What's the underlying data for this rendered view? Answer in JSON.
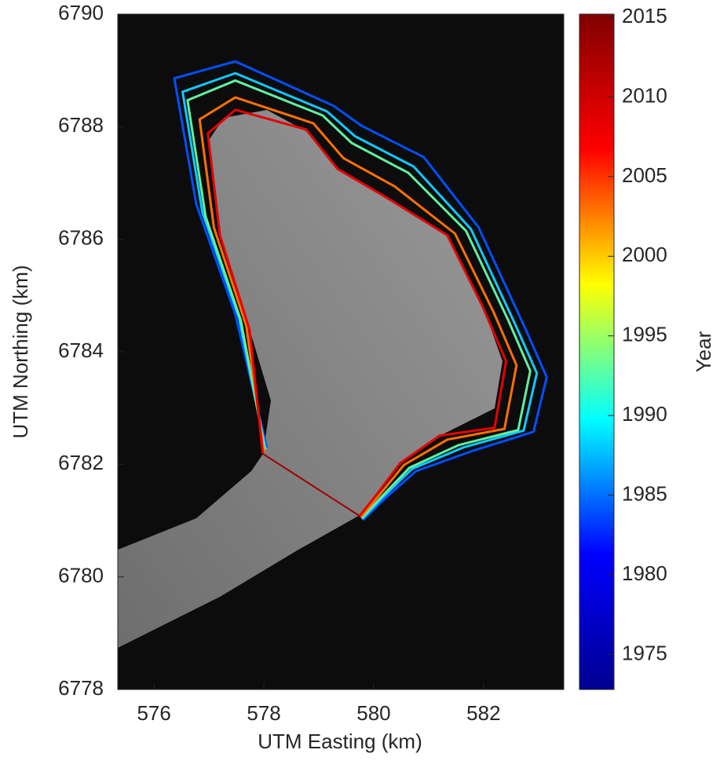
{
  "chart_data": {
    "type": "line",
    "xlabel": "UTM Easting (km)",
    "ylabel": "UTM Northing (km)",
    "xlim": [
      575.34,
      583.46
    ],
    "xticks": [
      576,
      578,
      580,
      582
    ],
    "ylim": [
      6778,
      6790
    ],
    "yticks": [
      6778,
      6780,
      6782,
      6784,
      6786,
      6788,
      6790
    ],
    "series": [
      {
        "color": "#0050ff",
        "x": [
          578.05,
          577.48,
          576.77,
          576.37,
          577.48,
          579.27,
          579.77,
          580.91,
          581.91,
          582.77,
          583.15,
          582.91,
          581.77,
          580.77,
          580.2,
          579.8
        ],
        "values": [
          6782.3,
          6784.67,
          6786.62,
          6788.86,
          6789.16,
          6788.37,
          6788.02,
          6787.46,
          6786.21,
          6784.39,
          6783.55,
          6782.58,
          6782.23,
          6781.88,
          6781.39,
          6781.01
        ]
      },
      {
        "color": "#10c8ff",
        "x": [
          578.03,
          577.55,
          576.88,
          576.52,
          577.48,
          579.15,
          579.66,
          580.73,
          581.77,
          582.57,
          582.97,
          582.73,
          581.63,
          580.7,
          580.16,
          579.79
        ],
        "values": [
          6782.27,
          6784.6,
          6786.48,
          6788.62,
          6788.95,
          6788.27,
          6787.83,
          6787.29,
          6786.18,
          6784.5,
          6783.62,
          6782.6,
          6782.3,
          6781.92,
          6781.41,
          6781.03
        ]
      },
      {
        "color": "#60f0a0",
        "x": [
          578.02,
          577.58,
          576.94,
          576.61,
          577.48,
          579.07,
          579.6,
          580.63,
          581.68,
          582.45,
          582.85,
          582.63,
          581.54,
          580.65,
          580.14,
          579.78
        ],
        "values": [
          6782.26,
          6784.56,
          6786.4,
          6788.47,
          6788.82,
          6788.2,
          6787.71,
          6787.18,
          6786.15,
          6784.56,
          6783.66,
          6782.61,
          6782.34,
          6781.94,
          6781.42,
          6781.04
        ]
      },
      {
        "color": "#ff7000",
        "x": [
          578.0,
          577.68,
          577.09,
          576.83,
          577.48,
          578.9,
          579.45,
          580.38,
          581.48,
          582.18,
          582.6,
          582.38,
          581.34,
          580.55,
          580.09,
          579.76
        ],
        "values": [
          6782.22,
          6784.46,
          6786.21,
          6788.13,
          6788.52,
          6788.06,
          6787.44,
          6786.94,
          6786.1,
          6784.71,
          6783.76,
          6782.63,
          6782.44,
          6781.99,
          6781.44,
          6781.06
        ]
      },
      {
        "color": "#e80000",
        "x": [
          577.98,
          577.74,
          577.2,
          576.98,
          577.48,
          578.77,
          579.34,
          580.2,
          581.34,
          581.98,
          582.41,
          582.2,
          581.2,
          580.48,
          580.05,
          579.74
        ],
        "values": [
          6782.19,
          6784.39,
          6786.07,
          6787.88,
          6788.3,
          6787.95,
          6787.25,
          6786.76,
          6786.07,
          6784.81,
          6783.83,
          6782.65,
          6782.51,
          6782.02,
          6781.46,
          6781.08
        ]
      }
    ],
    "colorbar": {
      "label": "Year",
      "lim": [
        1972.8,
        2015.2
      ],
      "ticks": [
        1975,
        1980,
        1985,
        1990,
        1995,
        2000,
        2005,
        2010,
        2015
      ],
      "colors": [
        "#00008f",
        "#0000ff",
        "#00ffff",
        "#ffff00",
        "#ff0000",
        "#800000"
      ]
    }
  }
}
